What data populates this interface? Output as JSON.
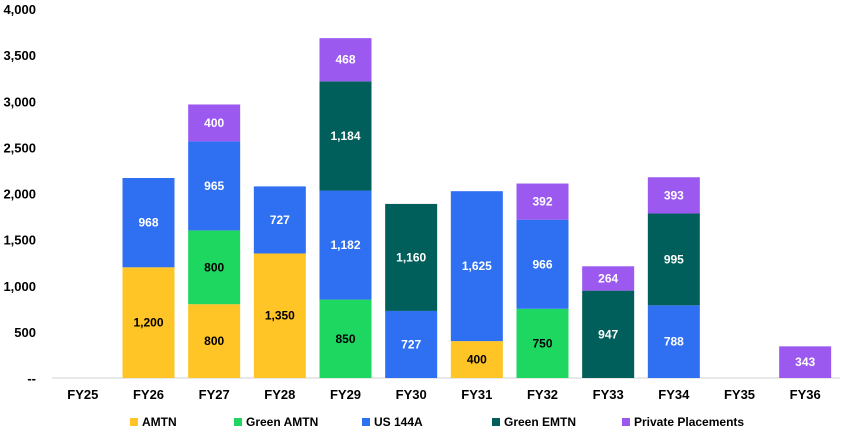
{
  "chart_data": {
    "type": "bar",
    "stacked": true,
    "title": "",
    "xlabel": "",
    "ylabel": "",
    "ylim": [
      0,
      4000
    ],
    "yticks": [
      0,
      500,
      1000,
      1500,
      2000,
      2500,
      3000,
      3500,
      4000
    ],
    "ytick_labels": [
      "--",
      "500",
      "1,000",
      "1,500",
      "2,000",
      "2,500",
      "3,000",
      "3,500",
      "4,000"
    ],
    "grid": false,
    "legend_position": "bottom",
    "categories": [
      "FY25",
      "FY26",
      "FY27",
      "FY28",
      "FY29",
      "FY30",
      "FY31",
      "FY32",
      "FY33",
      "FY34",
      "FY35",
      "FY36"
    ],
    "series": [
      {
        "name": "AMTN",
        "color": "#FFC425",
        "label_color": "#000000",
        "values": [
          0,
          1200,
          800,
          1350,
          0,
          0,
          400,
          0,
          0,
          0,
          0,
          0
        ],
        "labels": [
          "",
          "1,200",
          "800",
          "1,350",
          "",
          "",
          "400",
          "",
          "",
          "",
          "",
          ""
        ]
      },
      {
        "name": "Green AMTN",
        "color": "#1ED760",
        "label_color": "#000000",
        "values": [
          0,
          0,
          800,
          0,
          850,
          0,
          0,
          750,
          0,
          0,
          0,
          0
        ],
        "labels": [
          "",
          "",
          "800",
          "",
          "850",
          "",
          "",
          "750",
          "",
          "",
          "",
          ""
        ]
      },
      {
        "name": "US 144A",
        "color": "#2F6FF2",
        "label_color": "#FFFFFF",
        "values": [
          0,
          968,
          965,
          727,
          1182,
          727,
          1625,
          966,
          0,
          788,
          0,
          0
        ],
        "labels": [
          "",
          "968",
          "965",
          "727",
          "1,182",
          "727",
          "1,625",
          "966",
          "",
          "788",
          "",
          ""
        ]
      },
      {
        "name": "Green EMTN",
        "color": "#005F5A",
        "label_color": "#FFFFFF",
        "values": [
          0,
          0,
          0,
          0,
          1184,
          1160,
          0,
          0,
          947,
          995,
          0,
          0
        ],
        "labels": [
          "",
          "",
          "",
          "",
          "1,184",
          "1,160",
          "",
          "",
          "947",
          "995",
          "",
          ""
        ]
      },
      {
        "name": "Private Placements",
        "color": "#9B59F0",
        "label_color": "#FFFFFF",
        "values": [
          0,
          0,
          400,
          0,
          468,
          0,
          0,
          392,
          264,
          393,
          0,
          343
        ],
        "labels": [
          "",
          "",
          "400",
          "",
          "468",
          "",
          "",
          "392",
          "264",
          "393",
          "",
          "343"
        ]
      }
    ]
  }
}
